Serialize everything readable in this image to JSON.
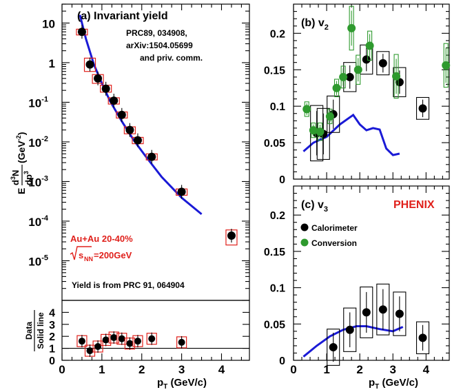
{
  "chart_data": [
    {
      "panel": "a",
      "type": "scatter",
      "title": "(a) Invariant yield",
      "ylabel": {
        "pre": "E",
        "num_a": "d",
        "num_sup1": "3",
        "num_b": "N",
        "den_a": "dp",
        "den_sup": "3",
        "unit_pre": " (GeV",
        "unit_sup": "-2",
        "unit_post": ")"
      },
      "yscale": "log",
      "xlim": [
        0,
        4.7
      ],
      "ylim": [
        1e-06,
        30
      ],
      "ytick_labels": [
        {
          "v": 10,
          "m": "10",
          "e": ""
        },
        {
          "v": 1,
          "m": "1",
          "e": ""
        },
        {
          "v": 0.1,
          "m": "10",
          "e": "-1"
        },
        {
          "v": 0.01,
          "m": "10",
          "e": "-2"
        },
        {
          "v": 0.001,
          "m": "10",
          "e": "-3"
        },
        {
          "v": 0.0001,
          "m": "10",
          "e": "-4"
        },
        {
          "v": 1e-05,
          "m": "10",
          "e": "-5"
        }
      ],
      "reference": [
        "PRC89, 034908,",
        "arXiv:1504.05699",
        "and priv. comm."
      ],
      "system": "Au+Au 20-40%",
      "energy": {
        "sym": "s",
        "sub": "NN",
        "rest": "=200GeV"
      },
      "footnote": "Yield is from PRC 91, 064904",
      "points": [
        {
          "x": 0.5,
          "y": 6.0,
          "ylo": 5.0,
          "yhi": 7.0
        },
        {
          "x": 0.7,
          "y": 0.9,
          "ylo": 0.6,
          "yhi": 1.3
        },
        {
          "x": 0.9,
          "y": 0.4,
          "ylo": 0.3,
          "yhi": 0.5
        },
        {
          "x": 1.1,
          "y": 0.22,
          "ylo": 0.18,
          "yhi": 0.27
        },
        {
          "x": 1.3,
          "y": 0.11,
          "ylo": 0.09,
          "yhi": 0.13
        },
        {
          "x": 1.5,
          "y": 0.048,
          "ylo": 0.04,
          "yhi": 0.057
        },
        {
          "x": 1.7,
          "y": 0.02,
          "ylo": 0.016,
          "yhi": 0.024
        },
        {
          "x": 1.9,
          "y": 0.011,
          "ylo": 0.009,
          "yhi": 0.013
        },
        {
          "x": 2.25,
          "y": 0.0042,
          "ylo": 0.0035,
          "yhi": 0.005
        },
        {
          "x": 3.0,
          "y": 0.00055,
          "ylo": 0.00045,
          "yhi": 0.00065
        },
        {
          "x": 4.25,
          "y": 4.3e-05,
          "ylo": 2.5e-05,
          "yhi": 6e-05
        }
      ],
      "curve": {
        "x": [
          0.45,
          0.6,
          0.8,
          1.0,
          1.2,
          1.5,
          1.8,
          2.1,
          2.5,
          3.0,
          3.5
        ],
        "y": [
          16,
          4.0,
          0.9,
          0.3,
          0.11,
          0.033,
          0.011,
          0.0043,
          0.0013,
          0.00039,
          0.00015
        ]
      }
    },
    {
      "panel": "ratio",
      "type": "scatter",
      "ylabel": "Data",
      "ylabel2": "Solid line",
      "xlabel": {
        "main": "p",
        "sub": "T",
        "rest": " (GeV/c)"
      },
      "xlim": [
        0,
        4.7
      ],
      "ylim": [
        0,
        5
      ],
      "xticks": [
        0,
        1,
        2,
        3,
        4
      ],
      "yticks": [
        0,
        1,
        2,
        3,
        4
      ],
      "hline": 1,
      "points": [
        {
          "x": 0.5,
          "y": 1.6
        },
        {
          "x": 0.7,
          "y": 0.8
        },
        {
          "x": 0.9,
          "y": 1.15
        },
        {
          "x": 1.1,
          "y": 1.7
        },
        {
          "x": 1.3,
          "y": 1.9
        },
        {
          "x": 1.5,
          "y": 1.8
        },
        {
          "x": 1.7,
          "y": 1.4
        },
        {
          "x": 1.9,
          "y": 1.6
        },
        {
          "x": 2.25,
          "y": 1.8
        },
        {
          "x": 3.0,
          "y": 1.5
        }
      ]
    },
    {
      "panel": "b",
      "type": "scatter",
      "title": {
        "main": "(b) v",
        "sub": "2"
      },
      "xlim": [
        0,
        4.7
      ],
      "ylim": [
        0,
        0.24
      ],
      "yticks": [
        0,
        0.05,
        0.1,
        0.15,
        0.2
      ],
      "ytick_labels": [
        "0",
        "0.05",
        "0.1",
        "0.15",
        "0.2"
      ],
      "series": [
        {
          "color": "#000000",
          "points": [
            {
              "x": 0.7,
              "y": 0.063,
              "sys": 0.038
            },
            {
              "x": 0.9,
              "y": 0.062,
              "sys": 0.035
            },
            {
              "x": 1.2,
              "y": 0.089,
              "sys": 0.025
            },
            {
              "x": 1.7,
              "y": 0.14,
              "sys": 0.02
            },
            {
              "x": 2.2,
              "y": 0.164,
              "sys": 0.02
            },
            {
              "x": 2.7,
              "y": 0.159,
              "sys": 0.016
            },
            {
              "x": 3.2,
              "y": 0.133,
              "sys": 0.02
            },
            {
              "x": 3.9,
              "y": 0.097,
              "sys": 0.015
            }
          ]
        },
        {
          "color": "#2e9a2e",
          "points": [
            {
              "x": 0.4,
              "y": 0.096,
              "sys": 0.01
            },
            {
              "x": 0.6,
              "y": 0.067,
              "sys": 0.01
            },
            {
              "x": 0.8,
              "y": 0.065,
              "sys": 0.012
            },
            {
              "x": 1.1,
              "y": 0.086,
              "sys": 0.01
            },
            {
              "x": 1.3,
              "y": 0.125,
              "sys": 0.012
            },
            {
              "x": 1.5,
              "y": 0.14,
              "sys": 0.015
            },
            {
              "x": 1.75,
              "y": 0.207,
              "sys": 0.03
            },
            {
              "x": 1.95,
              "y": 0.15,
              "sys": 0.02
            },
            {
              "x": 2.3,
              "y": 0.183,
              "sys": 0.02
            },
            {
              "x": 3.1,
              "y": 0.141,
              "sys": 0.03
            },
            {
              "x": 4.6,
              "y": 0.156,
              "sys": 0.03
            }
          ]
        }
      ],
      "curve": {
        "x": [
          0.3,
          0.6,
          1.0,
          1.4,
          1.8,
          2.0,
          2.2,
          2.4,
          2.6,
          2.8,
          3.0,
          3.2
        ],
        "y": [
          0.038,
          0.05,
          0.058,
          0.075,
          0.088,
          0.075,
          0.067,
          0.07,
          0.068,
          0.042,
          0.033,
          0.035
        ]
      }
    },
    {
      "panel": "c",
      "type": "scatter",
      "title": {
        "main": "(c) v",
        "sub": "3"
      },
      "experiment": "PHENIX",
      "legend": [
        {
          "label": "Calorimeter",
          "color": "#000000"
        },
        {
          "label": "Conversion",
          "color": "#2e9a2e"
        }
      ],
      "xlabel": {
        "main": "p",
        "sub": "T",
        "rest": " (GeV/c)"
      },
      "xlim": [
        0,
        4.7
      ],
      "ylim": [
        0,
        0.24
      ],
      "xticks": [
        0,
        1,
        2,
        3,
        4
      ],
      "yticks": [
        0,
        0.05,
        0.1,
        0.15,
        0.2
      ],
      "ytick_labels": [
        "0",
        "0.05",
        "0.1",
        "0.15",
        "0.2"
      ],
      "points": [
        {
          "x": 1.2,
          "y": 0.018,
          "sys": 0.025
        },
        {
          "x": 1.7,
          "y": 0.042,
          "sys": 0.03
        },
        {
          "x": 2.2,
          "y": 0.066,
          "sys": 0.035
        },
        {
          "x": 2.7,
          "y": 0.07,
          "sys": 0.035
        },
        {
          "x": 3.2,
          "y": 0.064,
          "sys": 0.03
        },
        {
          "x": 3.9,
          "y": 0.031,
          "sys": 0.022
        }
      ],
      "curve": {
        "x": [
          0.3,
          0.7,
          1.1,
          1.5,
          1.9,
          2.2,
          2.6,
          3.0,
          3.3
        ],
        "y": [
          0.005,
          0.02,
          0.033,
          0.042,
          0.047,
          0.047,
          0.043,
          0.04,
          0.046
        ]
      }
    }
  ]
}
